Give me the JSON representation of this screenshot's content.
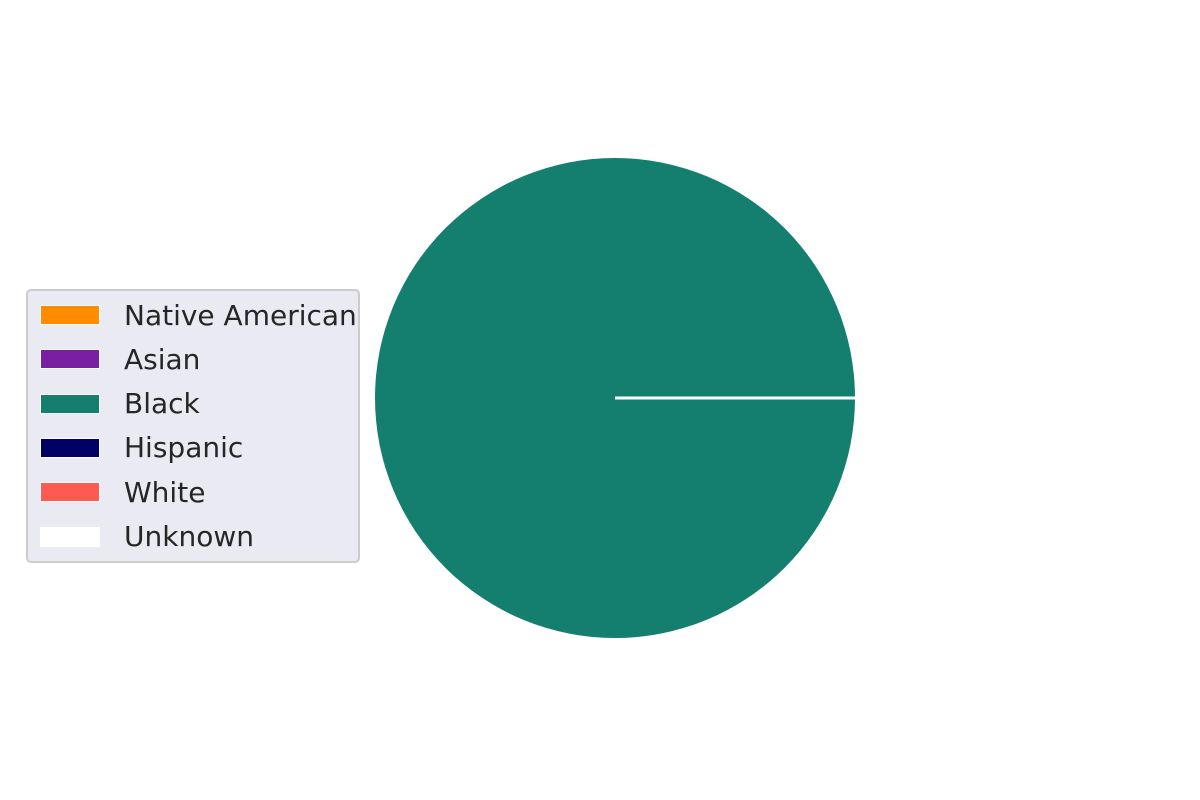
{
  "chart_data": {
    "type": "pie",
    "categories": [
      "Native American",
      "Asian",
      "Black",
      "Hispanic",
      "White",
      "Unknown"
    ],
    "values": [
      0,
      0,
      100,
      0,
      0,
      0
    ],
    "colors": [
      "#ff8c00",
      "#7b1fa2",
      "#147f6f",
      "#000066",
      "#ff5a52",
      "#ffffff"
    ],
    "legend_placement": "center-left"
  }
}
